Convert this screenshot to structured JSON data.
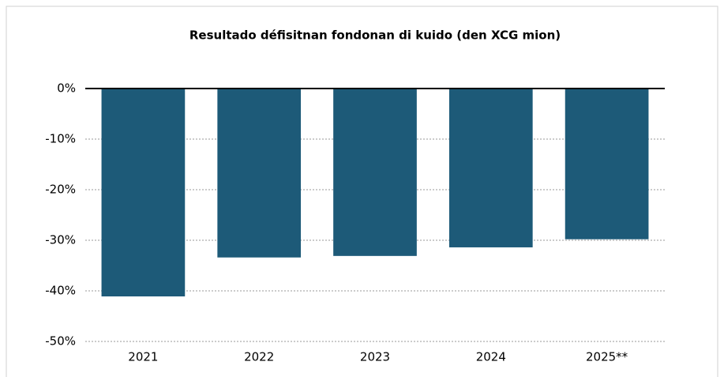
{
  "chart_data": {
    "type": "bar",
    "title": "Resultado défisitnan fondonan di kuido (den XCG mion)",
    "categories": [
      "2021",
      "2022",
      "2023",
      "2024",
      "2025**"
    ],
    "values": [
      -41.1,
      -33.4,
      -33.1,
      -31.4,
      -29.8
    ],
    "color": "#1d5a78",
    "ylim": [
      -50,
      0
    ],
    "yticks": [
      {
        "value": 0,
        "label": "0%"
      },
      {
        "value": -10,
        "label": "-10%"
      },
      {
        "value": -20,
        "label": "-20%"
      },
      {
        "value": -30,
        "label": "-30%"
      },
      {
        "value": -40,
        "label": "-40%"
      },
      {
        "value": -50,
        "label": "-50%"
      }
    ],
    "grid": true
  }
}
